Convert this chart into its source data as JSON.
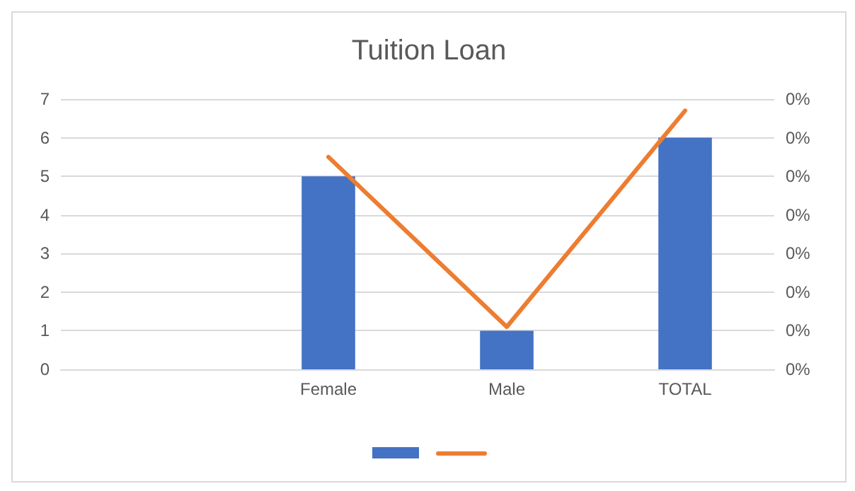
{
  "chart_data": {
    "type": "bar",
    "title": "Tuition Loan",
    "categories": [
      null,
      "Female",
      "Male",
      "TOTAL"
    ],
    "series": [
      {
        "color": "#4472c4",
        "values": [
          null,
          5,
          1,
          6
        ]
      },
      {
        "type": "line",
        "axis": "y2",
        "color": "#ed7d31",
        "values": [
          null,
          0.0055,
          0.0011,
          0.0067
        ]
      }
    ],
    "ylim": [
      0,
      7
    ],
    "yticks": [
      0,
      1,
      2,
      3,
      4,
      5,
      6,
      7
    ],
    "y2lim": [
      0,
      0.007
    ],
    "y2ticks": [
      {
        "value": 0,
        "label": "0%"
      },
      {
        "value": 0.001,
        "label": "0%"
      },
      {
        "value": 0.002,
        "label": "0%"
      },
      {
        "value": 0.003,
        "label": "0%"
      },
      {
        "value": 0.004,
        "label": "0%"
      },
      {
        "value": 0.005,
        "label": "0%"
      },
      {
        "value": 0.006,
        "label": "0%"
      },
      {
        "value": 0.007,
        "label": "0%"
      }
    ],
    "grid": "y",
    "marker": "none",
    "line_style": "solid"
  }
}
